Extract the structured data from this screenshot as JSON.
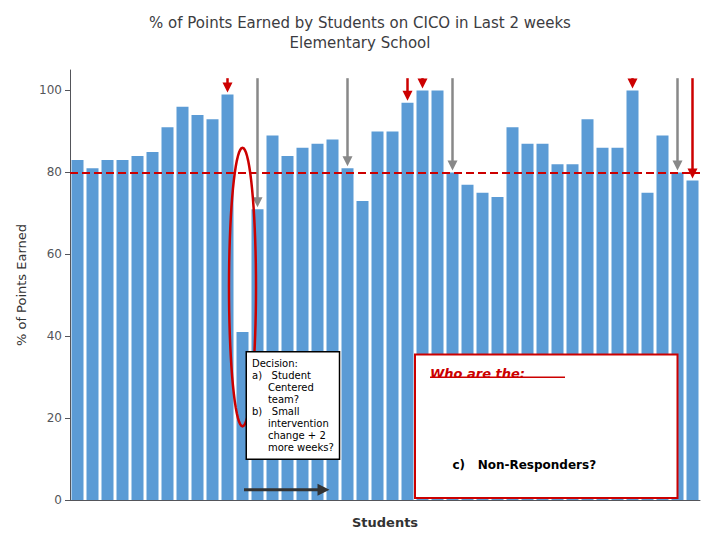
{
  "chart_data": {
    "type": "bar",
    "title": "% of Points Earned by Students on CICO in Last 2 weeks\nElementary School",
    "xlabel": "Students",
    "ylabel": "% of Points Earned",
    "values": [
      83,
      81,
      83,
      83,
      84,
      85,
      91,
      96,
      94,
      93,
      99,
      41,
      71,
      89,
      84,
      86,
      87,
      88,
      81,
      73,
      90,
      90,
      97,
      100,
      100,
      80,
      77,
      75,
      74,
      91,
      87,
      87,
      82,
      82,
      93,
      86,
      86,
      100,
      75,
      89,
      80,
      78
    ],
    "color": "#5B9BD5",
    "ylim": [
      0,
      105
    ],
    "yticks": [
      0,
      20,
      40,
      60,
      80,
      100
    ],
    "grid": false,
    "tick_labels": "y",
    "reference_line": {
      "value": 80,
      "color": "#CC0000"
    },
    "arrows": [
      {
        "color": "#CC0000",
        "indices": [
          10,
          22,
          23,
          37,
          41
        ]
      },
      {
        "color": "#888888",
        "indices": [
          12,
          18,
          25,
          40
        ]
      }
    ],
    "circled_index": 11,
    "annotations": [
      "Decision:\na)   Student\n     Centered\n     team?\nb)   Small\n     intervention\n     change + 2\n     more weeks?",
      "Who are the:",
      "c)   Non-Responders?"
    ]
  }
}
